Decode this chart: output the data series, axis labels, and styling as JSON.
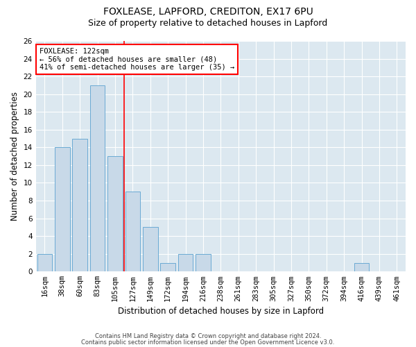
{
  "title1": "FOXLEASE, LAPFORD, CREDITON, EX17 6PU",
  "title2": "Size of property relative to detached houses in Lapford",
  "xlabel": "Distribution of detached houses by size in Lapford",
  "ylabel": "Number of detached properties",
  "footer1": "Contains HM Land Registry data © Crown copyright and database right 2024.",
  "footer2": "Contains public sector information licensed under the Open Government Licence v3.0.",
  "categories": [
    "16sqm",
    "38sqm",
    "60sqm",
    "83sqm",
    "105sqm",
    "127sqm",
    "149sqm",
    "172sqm",
    "194sqm",
    "216sqm",
    "238sqm",
    "261sqm",
    "283sqm",
    "305sqm",
    "327sqm",
    "350sqm",
    "372sqm",
    "394sqm",
    "416sqm",
    "439sqm",
    "461sqm"
  ],
  "values": [
    2,
    14,
    15,
    21,
    13,
    9,
    5,
    1,
    2,
    2,
    0,
    0,
    0,
    0,
    0,
    0,
    0,
    0,
    1,
    0,
    0
  ],
  "bar_color": "#c8d9e8",
  "bar_edge_color": "#6aaad4",
  "vline_x": 4.5,
  "annotation_title": "FOXLEASE: 122sqm",
  "annotation_line1": "← 56% of detached houses are smaller (48)",
  "annotation_line2": "41% of semi-detached houses are larger (35) →",
  "annotation_box_color": "white",
  "annotation_box_edge_color": "red",
  "vline_color": "red",
  "ylim": [
    0,
    26
  ],
  "yticks": [
    0,
    2,
    4,
    6,
    8,
    10,
    12,
    14,
    16,
    18,
    20,
    22,
    24,
    26
  ],
  "grid_color": "#ffffff",
  "plot_bg_color": "#dce8f0",
  "title1_fontsize": 10,
  "title2_fontsize": 9,
  "xlabel_fontsize": 8.5,
  "ylabel_fontsize": 8.5,
  "tick_fontsize": 7.5,
  "annot_fontsize": 7.5
}
